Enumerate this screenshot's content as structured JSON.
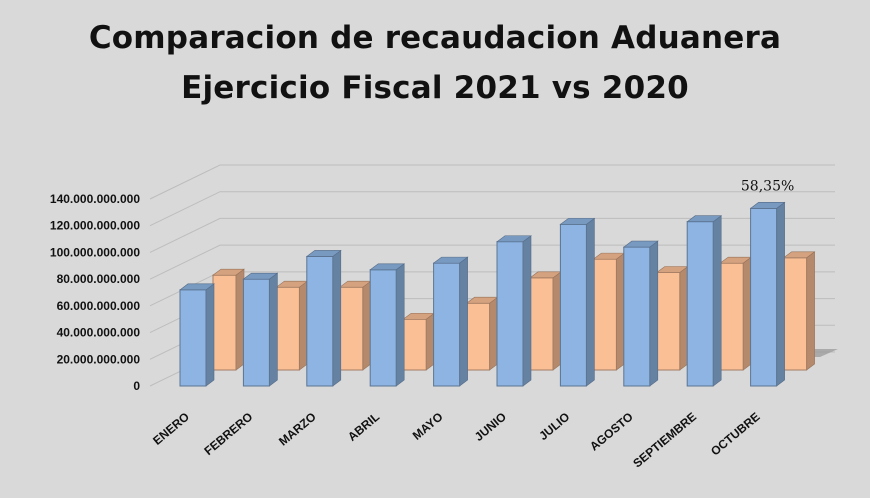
{
  "chart_data": {
    "type": "bar",
    "title_line1": "Comparacion de recaudacion Aduanera",
    "title_line2": "Ejercicio Fiscal  2021 vs 2020",
    "categories": [
      "ENERO",
      "FEBRERO",
      "MARZO",
      "ABRIL",
      "MAYO",
      "JUNIO",
      "JULIO",
      "AGOSTO",
      "SEPTIEMBRE",
      "OCTUBRE"
    ],
    "series": [
      {
        "values": [
          72000000000,
          80000000000,
          97000000000,
          87000000000,
          92000000000,
          108000000000,
          121000000000,
          104000000000,
          123000000000,
          133000000000
        ],
        "color": "#8db4e2"
      },
      {
        "values": [
          71000000000,
          62000000000,
          62000000000,
          38000000000,
          50000000000,
          69000000000,
          83000000000,
          73000000000,
          80000000000,
          84000000000
        ],
        "color": "#fbbf96"
      }
    ],
    "yticks": [
      "0",
      "20.000.000.000",
      "40.000.000.000",
      "60.000.000.000",
      "80.000.000.000",
      "100.000.000.000",
      "120.000.000.000",
      "140.000.000.000"
    ],
    "ylim": [
      0,
      140000000000
    ],
    "annotation": {
      "category": "OCTUBRE",
      "text": "58,35%"
    },
    "grid": true,
    "legend": "none"
  }
}
